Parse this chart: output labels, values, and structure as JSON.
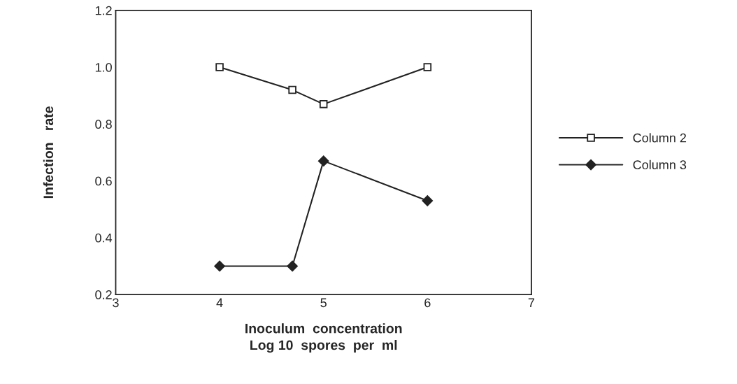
{
  "chart_data": {
    "type": "line",
    "xlabel": "Inoculum  concentration\nLog 10  spores  per  ml",
    "ylabel": "Infection   rate",
    "x": [
      4,
      4.7,
      5,
      6
    ],
    "series": [
      {
        "name": "Column 2",
        "color": "#222222",
        "values": [
          1.0,
          0.92,
          0.87,
          1.0
        ],
        "marker": "square"
      },
      {
        "name": "Column 3",
        "color": "#222222",
        "values": [
          0.3,
          0.3,
          0.67,
          0.53
        ],
        "marker": "diamond"
      }
    ],
    "xlim": [
      3,
      7
    ],
    "xticks": [
      3,
      4,
      5,
      6,
      7
    ],
    "ylim": [
      0.2,
      1.2
    ],
    "yticks": [
      {
        "value": 0.2,
        "label": "0.2"
      },
      {
        "value": 0.4,
        "label": "0.4"
      },
      {
        "value": 0.6,
        "label": "0.6"
      },
      {
        "value": 0.8,
        "label": "0.8"
      },
      {
        "value": 1.0,
        "label": "1.0"
      },
      {
        "value": 1.2,
        "label": "1.2"
      }
    ],
    "grid": false,
    "legend": "right",
    "line_style": "solid"
  }
}
